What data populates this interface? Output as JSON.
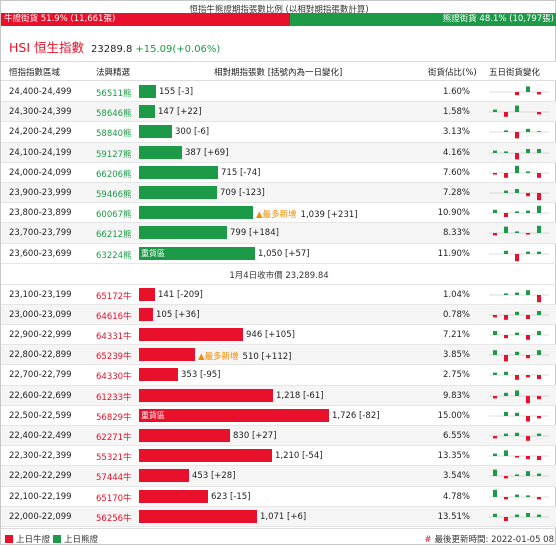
{
  "ratio": {
    "title": "恒指牛熊證期指張數比例 (以相對期指張數計算)",
    "bull_label": "牛證街貨 51.9% (11,661張)",
    "bear_label": "熊證街貨 48.1% (10,797張)",
    "bull_fraction": 0.519,
    "bull_color": "#e8102a",
    "bear_color": "#1d9a48"
  },
  "index": {
    "name": "HSI 恒生指數",
    "value": "23289.8",
    "change": "+15.09(+0.06%)"
  },
  "header": {
    "range": "恒指指數區域",
    "code": "法興精選",
    "qty": "相對期指張數 [括號內為一日變化]",
    "pct": "街貨佔比(%)",
    "trend": "五日街貨變化"
  },
  "max_qty": 1726,
  "bear_rows": [
    {
      "range": "24,400-24,499",
      "code": "56511熊",
      "qty": "155",
      "chg": "[-3]",
      "value": 155,
      "pct": "1.60%",
      "tag": "",
      "new_label": "",
      "spark": [
        0,
        0,
        -0.4,
        0.7,
        -0.3
      ]
    },
    {
      "range": "24,300-24,399",
      "code": "58646熊",
      "qty": "147",
      "chg": "[+22]",
      "value": 147,
      "pct": "1.58%",
      "tag": "",
      "new_label": "",
      "spark": [
        0.3,
        -0.6,
        0.8,
        0,
        -0.3
      ]
    },
    {
      "range": "24,200-24,299",
      "code": "58840熊",
      "qty": "300",
      "chg": "[-6]",
      "value": 300,
      "pct": "3.13%",
      "tag": "",
      "new_label": "",
      "spark": [
        0,
        0.2,
        -0.8,
        0.4,
        0.1
      ]
    },
    {
      "range": "24,100-24,199",
      "code": "59127熊",
      "qty": "387",
      "chg": "[+69]",
      "value": 387,
      "pct": "4.16%",
      "tag": "",
      "new_label": "",
      "spark": [
        0.3,
        0.2,
        -0.8,
        0.5,
        0.5
      ]
    },
    {
      "range": "24,000-24,099",
      "code": "66206熊",
      "qty": "715",
      "chg": "[-74]",
      "value": 715,
      "pct": "7.60%",
      "tag": "",
      "new_label": "",
      "spark": [
        -0.2,
        -0.6,
        0.9,
        0.2,
        -0.6
      ]
    },
    {
      "range": "23,900-23,999",
      "code": "59466熊",
      "qty": "709",
      "chg": "[-123]",
      "value": 709,
      "pct": "7.28%",
      "tag": "",
      "new_label": "",
      "spark": [
        0,
        0.3,
        0.5,
        -0.4,
        -0.9
      ]
    },
    {
      "range": "23,800-23,899",
      "code": "60067熊",
      "qty": "1,039",
      "chg": "[+231]",
      "value": 1039,
      "pct": "10.90%",
      "tag": "",
      "new_label": "▲最多新增",
      "spark": [
        0.4,
        -0.5,
        0.2,
        0.3,
        0.9
      ]
    },
    {
      "range": "23,700-23,799",
      "code": "66212熊",
      "qty": "799",
      "chg": "[+184]",
      "value": 799,
      "pct": "8.33%",
      "tag": "",
      "new_label": "",
      "spark": [
        -0.3,
        0.8,
        0.2,
        -0.2,
        0.9
      ]
    },
    {
      "range": "23,600-23,699",
      "code": "63224熊",
      "qty": "1,050",
      "chg": "[+57]",
      "value": 1050,
      "pct": "11.90%",
      "tag": "重貨區",
      "new_label": "",
      "spark": [
        0,
        0.4,
        -0.9,
        0.3,
        0.3
      ]
    }
  ],
  "separator": "1月4日收市價 23,289.84",
  "bull_rows": [
    {
      "range": "23,100-23,199",
      "code": "65172牛",
      "qty": "141",
      "chg": "[-209]",
      "value": 141,
      "pct": "1.04%",
      "tag": "",
      "new_label": "",
      "spark": [
        0,
        0.2,
        0.3,
        0.6,
        -0.9
      ]
    },
    {
      "range": "23,000-23,099",
      "code": "64616牛",
      "qty": "105",
      "chg": "[+36]",
      "value": 105,
      "pct": "0.78%",
      "tag": "",
      "new_label": "",
      "spark": [
        -0.3,
        -0.6,
        0.4,
        -0.5,
        0.5
      ]
    },
    {
      "range": "22,900-22,999",
      "code": "64331牛",
      "qty": "946",
      "chg": "[+105]",
      "value": 946,
      "pct": "7.21%",
      "tag": "",
      "new_label": "",
      "spark": [
        0.5,
        -0.4,
        0.3,
        -0.6,
        0.5
      ]
    },
    {
      "range": "22,800-22,899",
      "code": "65239牛",
      "qty": "510",
      "chg": "[+112]",
      "value": 510,
      "pct": "3.85%",
      "tag": "",
      "new_label": "▲最多新增",
      "spark": [
        0.6,
        -0.8,
        0.4,
        -0.4,
        0.6
      ]
    },
    {
      "range": "22,700-22,799",
      "code": "64330牛",
      "qty": "353",
      "chg": "[-95]",
      "value": 353,
      "pct": "2.75%",
      "tag": "",
      "new_label": "",
      "spark": [
        0.3,
        0.4,
        -0.6,
        -0.3,
        -0.5
      ]
    },
    {
      "range": "22,600-22,699",
      "code": "61233牛",
      "qty": "1,218",
      "chg": "[-61]",
      "value": 1218,
      "pct": "9.83%",
      "tag": "",
      "new_label": "",
      "spark": [
        -0.3,
        0.4,
        0.7,
        -0.9,
        -0.4
      ]
    },
    {
      "range": "22,500-22,599",
      "code": "56829牛",
      "qty": "1,726",
      "chg": "[-82]",
      "value": 1726,
      "pct": "15.00%",
      "tag": "重貨區",
      "new_label": "",
      "spark": [
        0,
        0.5,
        0.4,
        -0.7,
        -0.3
      ]
    },
    {
      "range": "22,400-22,499",
      "code": "62271牛",
      "qty": "830",
      "chg": "[+27]",
      "value": 830,
      "pct": "6.55%",
      "tag": "",
      "new_label": "",
      "spark": [
        -0.3,
        0.3,
        0.4,
        -0.6,
        0.3
      ]
    },
    {
      "range": "22,300-22,399",
      "code": "55321牛",
      "qty": "1,210",
      "chg": "[-54]",
      "value": 1210,
      "pct": "13.35%",
      "tag": "",
      "new_label": "",
      "spark": [
        0.3,
        0.7,
        -0.2,
        -0.4,
        -0.5
      ]
    },
    {
      "range": "22,200-22,299",
      "code": "57444牛",
      "qty": "453",
      "chg": "[+28]",
      "value": 453,
      "pct": "3.54%",
      "tag": "",
      "new_label": "",
      "spark": [
        0.8,
        -0.3,
        0.2,
        0.6,
        0.3
      ]
    },
    {
      "range": "22,100-22,199",
      "code": "65170牛",
      "qty": "623",
      "chg": "[-15]",
      "value": 623,
      "pct": "4.78%",
      "tag": "",
      "new_label": "",
      "spark": [
        0.9,
        -0.3,
        0.3,
        0.2,
        -0.3
      ]
    },
    {
      "range": "22,000-22,099",
      "code": "56256牛",
      "qty": "1,071",
      "chg": "[+6]",
      "value": 1071,
      "pct": "13.51%",
      "tag": "",
      "new_label": "",
      "spark": [
        0.4,
        -0.5,
        0.3,
        0.5,
        0.3
      ]
    }
  ],
  "footer": {
    "legend_bull": "上日牛證",
    "legend_bear": "上日熊證",
    "update_label": "最後更新時間: 2022-01-05 08",
    "hash": "#"
  }
}
